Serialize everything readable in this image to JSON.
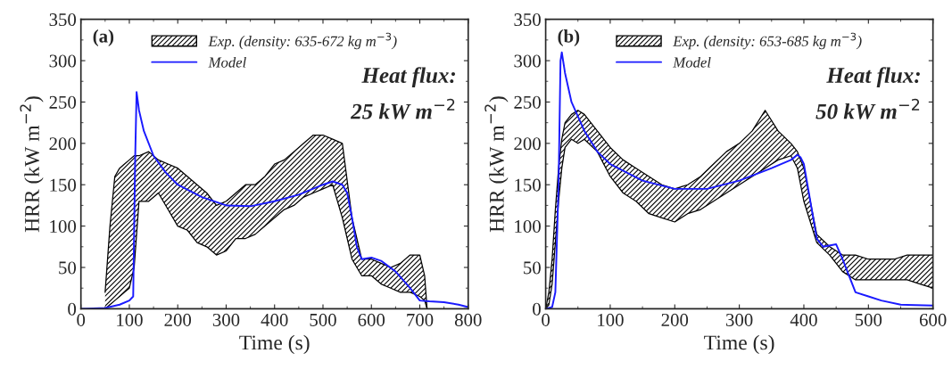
{
  "chart_data": [
    {
      "type": "line",
      "xlabel": "Time (s)",
      "ylabel": "HRR (kW m$^{−2}$)",
      "xlim": [
        0,
        800
      ],
      "ylim": [
        0,
        350
      ],
      "xticks": [
        0,
        100,
        200,
        300,
        400,
        500,
        600,
        700,
        800
      ],
      "yticks": [
        0,
        50,
        100,
        150,
        200,
        250,
        300,
        350
      ],
      "legend": "top",
      "grid": false,
      "annotations": [
        "(a)",
        "Heat flux:",
        "25 kW m$^{−2}$"
      ],
      "series": [
        {
          "color": "#000000",
          "x": [
            50,
            60,
            70,
            80,
            90,
            100,
            110,
            120,
            140,
            160,
            180,
            200,
            220,
            240,
            260,
            280,
            300,
            320,
            340,
            360,
            380,
            400,
            420,
            440,
            460,
            480,
            500,
            520,
            540,
            560,
            580,
            600,
            620,
            640,
            660,
            680,
            700,
            710,
            715
          ],
          "values": [
            0,
            5,
            10,
            15,
            20,
            25,
            50,
            130,
            130,
            140,
            120,
            100,
            95,
            80,
            75,
            65,
            70,
            85,
            85,
            90,
            100,
            110,
            120,
            125,
            135,
            140,
            145,
            150,
            110,
            60,
            40,
            40,
            30,
            25,
            20,
            20,
            15,
            10,
            0
          ]
        },
        {
          "type": "area",
          "name": "Exp. (density: 635-672 kg m$^{−3}$)",
          "color": "#000000",
          "x": [
            50,
            60,
            70,
            80,
            90,
            100,
            110,
            120,
            140,
            160,
            180,
            200,
            220,
            240,
            260,
            280,
            300,
            320,
            340,
            360,
            380,
            400,
            420,
            440,
            460,
            480,
            500,
            520,
            540,
            560,
            580,
            600,
            620,
            640,
            660,
            680,
            700,
            710,
            715
          ],
          "values": [
            20,
            100,
            160,
            170,
            175,
            180,
            185,
            185,
            190,
            180,
            175,
            170,
            160,
            150,
            140,
            125,
            130,
            140,
            150,
            150,
            160,
            175,
            180,
            190,
            200,
            210,
            210,
            205,
            200,
            110,
            60,
            60,
            55,
            50,
            55,
            65,
            65,
            40,
            0
          ]
        },
        {
          "name": "Model",
          "color": "#1a1aff",
          "x": [
            0,
            50,
            80,
            100,
            108,
            112,
            115,
            120,
            130,
            150,
            175,
            200,
            250,
            300,
            350,
            400,
            450,
            500,
            520,
            540,
            550,
            560,
            570,
            580,
            600,
            620,
            650,
            680,
            700,
            720,
            750,
            780,
            800
          ],
          "values": [
            0,
            1,
            5,
            10,
            15,
            180,
            262,
            240,
            215,
            185,
            165,
            150,
            135,
            125,
            124,
            130,
            138,
            150,
            154,
            150,
            140,
            110,
            75,
            60,
            62,
            58,
            45,
            25,
            10,
            9,
            8,
            5,
            2
          ]
        }
      ]
    },
    {
      "type": "line",
      "xlabel": "Time (s)",
      "ylabel": "HRR (kW m$^{−2}$)",
      "xlim": [
        0,
        600
      ],
      "ylim": [
        0,
        350
      ],
      "xticks": [
        0,
        100,
        200,
        300,
        400,
        500,
        600
      ],
      "yticks": [
        0,
        50,
        100,
        150,
        200,
        250,
        300,
        350
      ],
      "legend": "top",
      "grid": false,
      "annotations": [
        "(b)",
        "Heat flux:",
        "50 kW m$^{−2}$"
      ],
      "series": [
        {
          "color": "#000000",
          "x": [
            0,
            5,
            10,
            15,
            20,
            25,
            30,
            40,
            50,
            60,
            80,
            100,
            120,
            140,
            160,
            180,
            200,
            220,
            240,
            260,
            280,
            300,
            320,
            340,
            360,
            380,
            390,
            400,
            420,
            440,
            460,
            480,
            500,
            520,
            540,
            560,
            580,
            600
          ],
          "values": [
            0,
            5,
            30,
            80,
            130,
            170,
            195,
            205,
            200,
            205,
            190,
            160,
            140,
            130,
            115,
            110,
            105,
            115,
            120,
            130,
            140,
            150,
            160,
            170,
            180,
            185,
            170,
            130,
            80,
            65,
            45,
            35,
            35,
            35,
            35,
            35,
            30,
            25
          ]
        },
        {
          "type": "area",
          "name": "Exp. (density: 653-685 kg m$^{−3}$)",
          "color": "#000000",
          "x": [
            0,
            5,
            10,
            15,
            20,
            25,
            30,
            40,
            50,
            60,
            80,
            100,
            120,
            140,
            160,
            180,
            200,
            220,
            240,
            260,
            280,
            300,
            320,
            340,
            360,
            380,
            390,
            400,
            420,
            440,
            460,
            480,
            500,
            520,
            540,
            560,
            580,
            600
          ],
          "values": [
            0,
            20,
            60,
            120,
            170,
            205,
            225,
            235,
            240,
            235,
            215,
            195,
            180,
            170,
            160,
            150,
            145,
            150,
            160,
            175,
            190,
            200,
            215,
            240,
            215,
            200,
            190,
            170,
            90,
            75,
            65,
            65,
            60,
            60,
            60,
            65,
            65,
            65
          ]
        },
        {
          "name": "Model",
          "color": "#1a1aff",
          "x": [
            0,
            10,
            15,
            20,
            23,
            25,
            30,
            40,
            60,
            80,
            100,
            150,
            200,
            250,
            300,
            350,
            380,
            390,
            395,
            400,
            410,
            420,
            430,
            450,
            460,
            470,
            480,
            500,
            520,
            550,
            600
          ],
          "values": [
            0,
            2,
            20,
            150,
            300,
            310,
            285,
            250,
            215,
            190,
            175,
            155,
            145,
            145,
            155,
            170,
            180,
            186,
            183,
            175,
            130,
            85,
            75,
            78,
            60,
            40,
            20,
            15,
            10,
            5,
            4
          ]
        }
      ]
    }
  ]
}
